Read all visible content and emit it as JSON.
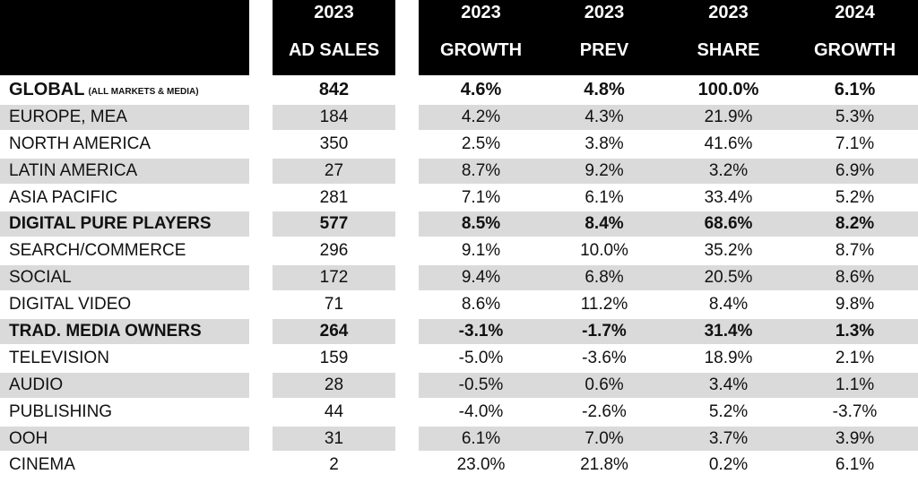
{
  "chart_data": {
    "type": "table",
    "columns": [
      {
        "line1": "2023",
        "line2": "AD SALES"
      },
      {
        "line1": "2023",
        "line2": "GROWTH"
      },
      {
        "line1": "2023",
        "line2": "PREV"
      },
      {
        "line1": "2023",
        "line2": "SHARE"
      },
      {
        "line1": "2024",
        "line2": "GROWTH"
      }
    ],
    "rows": [
      {
        "name": "GLOBAL",
        "note": "(ALL MARKETS & MEDIA)",
        "bold": true,
        "values": [
          "842",
          "4.6%",
          "4.8%",
          "100.0%",
          "6.1%"
        ]
      },
      {
        "name": "EUROPE, MEA",
        "note": "",
        "bold": false,
        "values": [
          "184",
          "4.2%",
          "4.3%",
          "21.9%",
          "5.3%"
        ]
      },
      {
        "name": "NORTH AMERICA",
        "note": "",
        "bold": false,
        "values": [
          "350",
          "2.5%",
          "3.8%",
          "41.6%",
          "7.1%"
        ]
      },
      {
        "name": "LATIN AMERICA",
        "note": "",
        "bold": false,
        "values": [
          "27",
          "8.7%",
          "9.2%",
          "3.2%",
          "6.9%"
        ]
      },
      {
        "name": "ASIA PACIFIC",
        "note": "",
        "bold": false,
        "values": [
          "281",
          "7.1%",
          "6.1%",
          "33.4%",
          "5.2%"
        ]
      },
      {
        "name": "DIGITAL PURE PLAYERS",
        "note": "",
        "bold": true,
        "values": [
          "577",
          "8.5%",
          "8.4%",
          "68.6%",
          "8.2%"
        ]
      },
      {
        "name": "SEARCH/COMMERCE",
        "note": "",
        "bold": false,
        "values": [
          "296",
          "9.1%",
          "10.0%",
          "35.2%",
          "8.7%"
        ]
      },
      {
        "name": "SOCIAL",
        "note": "",
        "bold": false,
        "values": [
          "172",
          "9.4%",
          "6.8%",
          "20.5%",
          "8.6%"
        ]
      },
      {
        "name": "DIGITAL VIDEO",
        "note": "",
        "bold": false,
        "values": [
          "71",
          "8.6%",
          "11.2%",
          "8.4%",
          "9.8%"
        ]
      },
      {
        "name": "TRAD. MEDIA OWNERS",
        "note": "",
        "bold": true,
        "values": [
          "264",
          "-3.1%",
          "-1.7%",
          "31.4%",
          "1.3%"
        ]
      },
      {
        "name": "TELEVISION",
        "note": "",
        "bold": false,
        "values": [
          "159",
          "-5.0%",
          "-3.6%",
          "18.9%",
          "2.1%"
        ]
      },
      {
        "name": "AUDIO",
        "note": "",
        "bold": false,
        "values": [
          "28",
          "-0.5%",
          "0.6%",
          "3.4%",
          "1.1%"
        ]
      },
      {
        "name": "PUBLISHING",
        "note": "",
        "bold": false,
        "values": [
          "44",
          "-4.0%",
          "-2.6%",
          "5.2%",
          "-3.7%"
        ]
      },
      {
        "name": "OOH",
        "note": "",
        "bold": false,
        "values": [
          "31",
          "6.1%",
          "7.0%",
          "3.7%",
          "3.9%"
        ]
      },
      {
        "name": "CINEMA",
        "note": "",
        "bold": false,
        "values": [
          "2",
          "23.0%",
          "21.8%",
          "0.2%",
          "6.1%"
        ]
      }
    ],
    "colors": {
      "header_bg": "#000000",
      "header_text": "#ffffff",
      "band": "#dadada"
    }
  }
}
